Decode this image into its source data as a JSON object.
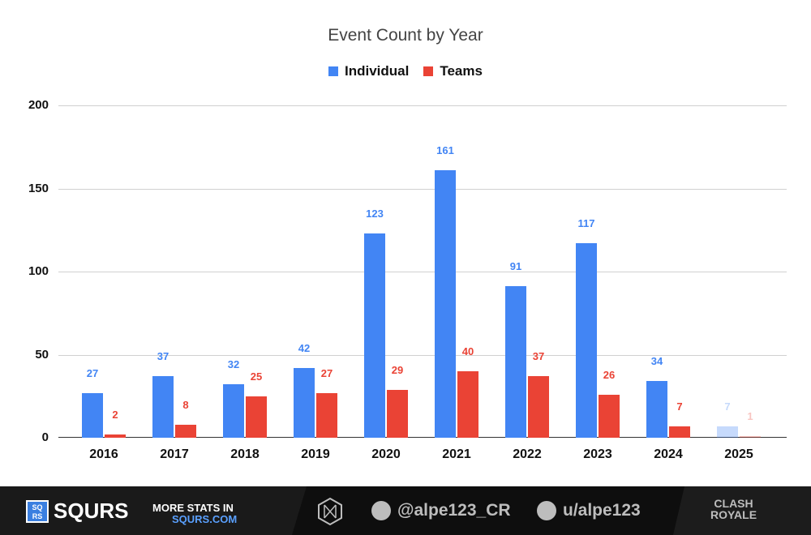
{
  "chart_data": {
    "type": "bar",
    "title": "Event Count by Year",
    "xlabel": "",
    "ylabel": "",
    "ylim": [
      0,
      200
    ],
    "yticks": [
      0,
      50,
      100,
      150,
      200
    ],
    "grid": true,
    "legend_position": "top",
    "categories": [
      "2016",
      "2017",
      "2018",
      "2019",
      "2020",
      "2021",
      "2022",
      "2023",
      "2024",
      "2025"
    ],
    "series": [
      {
        "name": "Individual",
        "color": "#4285f4",
        "values": [
          27,
          37,
          32,
          42,
          123,
          161,
          91,
          117,
          34,
          7
        ]
      },
      {
        "name": "Teams",
        "color": "#ea4335",
        "values": [
          2,
          8,
          25,
          27,
          29,
          40,
          37,
          26,
          7,
          1
        ]
      }
    ],
    "annotations": [
      "2025 bars shown faded (partial year)"
    ]
  },
  "title": "Event Count by Year",
  "legend": {
    "individual": "Individual",
    "teams": "Teams"
  },
  "footer": {
    "brand": "SQURS",
    "brand_logo_text": "SQ RS",
    "more_line1": "MORE STATS IN",
    "more_line2": "SQURS.COM",
    "twitter_handle": "@alpe123_CR",
    "reddit_handle": "u/alpe123",
    "game_logo_line1": "CLASH",
    "game_logo_line2": "ROYALE"
  }
}
